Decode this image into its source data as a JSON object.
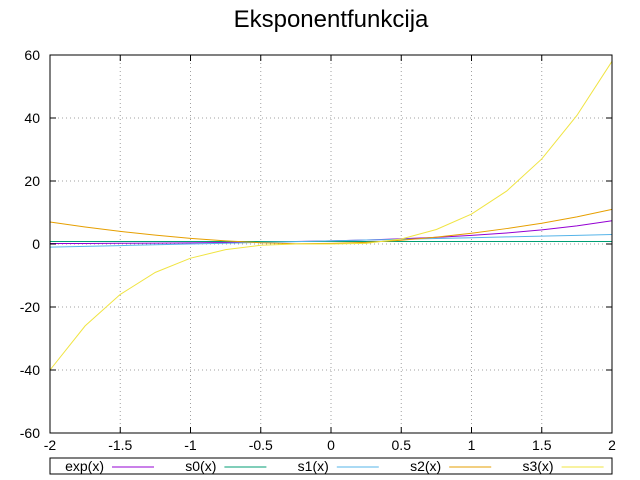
{
  "chart_data": {
    "type": "line",
    "title": "Eksponentfunkcija",
    "xlabel": "",
    "ylabel": "",
    "xlim": [
      -2,
      2
    ],
    "ylim": [
      -60,
      60
    ],
    "x_ticks": [
      -2,
      -1.5,
      -1,
      -0.5,
      0,
      0.5,
      1,
      1.5,
      2
    ],
    "x_tick_labels": [
      "-2",
      "-1.5",
      "-1",
      "-0.5",
      "0",
      "0.5",
      "1",
      "1.5",
      "2"
    ],
    "y_ticks": [
      -60,
      -40,
      -20,
      0,
      20,
      40,
      60
    ],
    "y_tick_labels": [
      "-60",
      "-40",
      "-20",
      "0",
      "20",
      "40",
      "60"
    ],
    "grid": true,
    "legend_position": "bottom",
    "x": [
      -2,
      -1.75,
      -1.5,
      -1.25,
      -1,
      -0.75,
      -0.5,
      -0.25,
      0,
      0.25,
      0.5,
      0.75,
      1,
      1.25,
      1.5,
      1.75,
      2
    ],
    "series": [
      {
        "name": "exp(x)",
        "color": "#9400d3",
        "values": [
          0.14,
          0.17,
          0.22,
          0.29,
          0.37,
          0.47,
          0.61,
          0.78,
          1,
          1.28,
          1.65,
          2.12,
          2.72,
          3.49,
          4.48,
          5.75,
          7.39
        ]
      },
      {
        "name": "s0(x)",
        "color": "#009e73",
        "values": [
          0.8,
          0.8,
          0.8,
          0.8,
          0.8,
          0.8,
          0.8,
          0.8,
          0.8,
          0.8,
          0.8,
          0.8,
          0.8,
          0.8,
          0.8,
          0.8,
          0.8
        ]
      },
      {
        "name": "s1(x)",
        "color": "#56b4e9",
        "values": [
          -1.0,
          -0.75,
          -0.5,
          -0.25,
          0.0,
          0.25,
          0.5,
          0.75,
          1.0,
          1.25,
          1.5,
          1.75,
          2.0,
          2.25,
          2.5,
          2.75,
          3.0
        ]
      },
      {
        "name": "s2(x)",
        "color": "#e69f00",
        "values": [
          7.0,
          5.4,
          4.0,
          2.8,
          1.8,
          1.0,
          0.4,
          0.1,
          0.2,
          0.5,
          1.2,
          2.2,
          3.4,
          4.9,
          6.6,
          8.6,
          11.0
        ]
      },
      {
        "name": "s3(x)",
        "color": "#f0e442",
        "values": [
          -40.0,
          -26.0,
          -16.0,
          -9.0,
          -4.5,
          -1.8,
          -0.4,
          0.0,
          0.0,
          0.2,
          1.6,
          4.6,
          9.5,
          16.8,
          27.0,
          40.8,
          58.0
        ]
      }
    ]
  }
}
